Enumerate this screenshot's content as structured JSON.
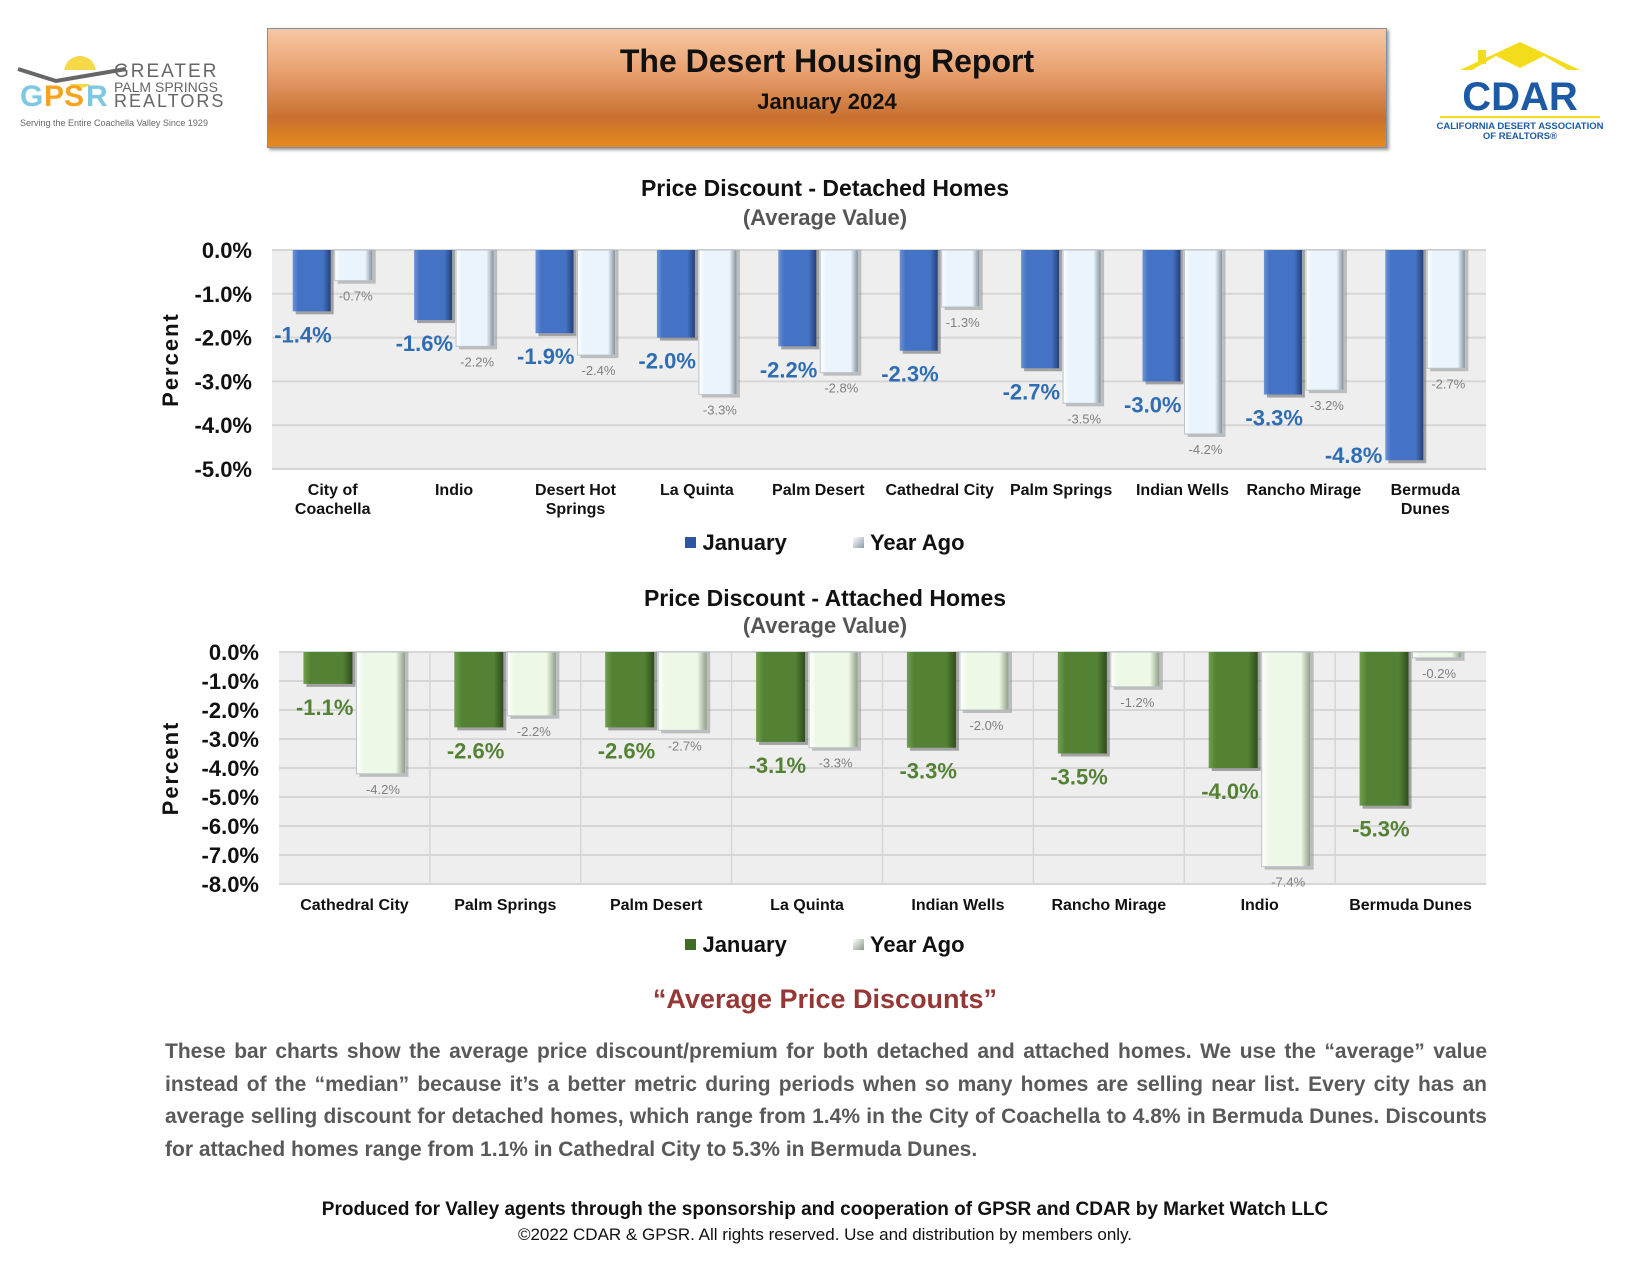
{
  "header": {
    "title": "The Desert Housing Report",
    "date": "January 2024"
  },
  "logos": {
    "gpsr": {
      "mark": "GPSR",
      "line1": "GREATER",
      "line2": "PALM SPRINGS",
      "line3": "REALTORS",
      "tagline": "Serving the Entire Coachella Valley Since 1929"
    },
    "cdar": {
      "mark": "CDAR",
      "line1": "CALIFORNIA DESERT ASSOCIATION",
      "line2": "OF REALTORS"
    }
  },
  "colors": {
    "detached_jan": "#4472C4",
    "detached_jan_label": "#2E6DB4",
    "detached_yago": "#EAF4FC",
    "attached_jan": "#548235",
    "attached_jan_label": "#548235",
    "attached_yago": "#EEF8E6",
    "yago_label": "#7F7F7F",
    "heading": "#953735"
  },
  "chart_data": [
    {
      "type": "bar",
      "title": "Price Discount - Detached Homes",
      "subtitle": "(Average Value)",
      "ylabel": "Percent",
      "ylim": [
        -5.0,
        0.0
      ],
      "yticks": [
        "0.0%",
        "-1.0%",
        "-2.0%",
        "-3.0%",
        "-4.0%",
        "-5.0%"
      ],
      "grid": "horizontal",
      "legend_placement": "bottom",
      "categories": [
        "City of\nCoachella",
        "Indio",
        "Desert Hot\nSprings",
        "La Quinta",
        "Palm Desert",
        "Cathedral City",
        "Palm Springs",
        "Indian Wells",
        "Rancho Mirage",
        "Bermuda\nDunes"
      ],
      "series": [
        {
          "name": "January",
          "values": [
            -1.4,
            -1.6,
            -1.9,
            -2.0,
            -2.2,
            -2.3,
            -2.7,
            -3.0,
            -3.3,
            -4.8
          ],
          "labels": [
            "-1.4%",
            "-1.6%",
            "-1.9%",
            "-2.0%",
            "-2.2%",
            "-2.3%",
            "-2.7%",
            "-3.0%",
            "-3.3%",
            "-4.8%"
          ]
        },
        {
          "name": "Year Ago",
          "values": [
            -0.7,
            -2.2,
            -2.4,
            -3.3,
            -2.8,
            -1.3,
            -3.5,
            -4.2,
            -3.2,
            -2.7
          ],
          "labels": [
            "-0.7%",
            "-2.2%",
            "-2.4%",
            "-3.3%",
            "-2.8%",
            "-1.3%",
            "-3.5%",
            "-4.2%",
            "-3.2%",
            "-2.7%"
          ]
        }
      ]
    },
    {
      "type": "bar",
      "title": "Price Discount - Attached Homes",
      "subtitle": "(Average Value)",
      "ylabel": "Percent",
      "ylim": [
        -8.0,
        0.0
      ],
      "yticks": [
        "0.0%",
        "-1.0%",
        "-2.0%",
        "-3.0%",
        "-4.0%",
        "-5.0%",
        "-6.0%",
        "-7.0%",
        "-8.0%"
      ],
      "grid": "both",
      "legend_placement": "bottom",
      "categories": [
        "Cathedral City",
        "Palm Springs",
        "Palm Desert",
        "La Quinta",
        "Indian Wells",
        "Rancho Mirage",
        "Indio",
        "Bermuda Dunes"
      ],
      "series": [
        {
          "name": "January",
          "values": [
            -1.1,
            -2.6,
            -2.6,
            -3.1,
            -3.3,
            -3.5,
            -4.0,
            -5.3
          ],
          "labels": [
            "-1.1%",
            "-2.6%",
            "-2.6%",
            "-3.1%",
            "-3.3%",
            "-3.5%",
            "-4.0%",
            "-5.3%"
          ]
        },
        {
          "name": "Year Ago",
          "values": [
            -4.2,
            -2.2,
            -2.7,
            -3.3,
            -2.0,
            -1.2,
            -7.4,
            -0.2
          ],
          "labels": [
            "-4.2%",
            "-2.2%",
            "-2.7%",
            "-3.3%",
            "-2.0%",
            "-1.2%",
            "-7.4%",
            "-0.2%"
          ]
        }
      ]
    }
  ],
  "discussion": {
    "heading": "“Average Price Discounts”",
    "body": "These bar charts show the average price discount/premium for both detached and attached homes. We use the “average” value instead of the “median” because it’s a better metric during periods when so many homes are selling near list. Every city has an average selling discount for detached homes, which range from 1.4% in the City of Coachella to 4.8% in Bermuda Dunes. Discounts for attached homes range from 1.1% in Cathedral City to 5.3% in Bermuda Dunes."
  },
  "footer": {
    "line": "Produced for Valley agents through the sponsorship and cooperation of GPSR and CDAR by Market Watch LLC",
    "copyright": "©2022 CDAR & GPSR.  All rights reserved.  Use and distribution by members only."
  }
}
